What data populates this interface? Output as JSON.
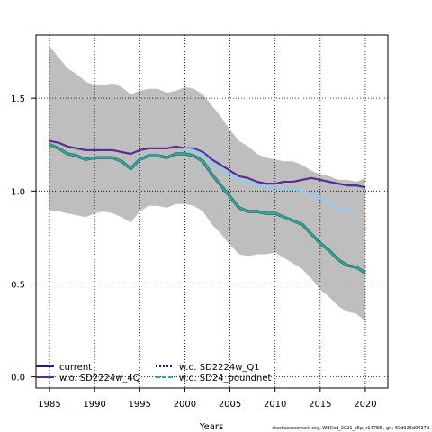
{
  "chart_data": {
    "type": "line",
    "title": "",
    "xlabel": "Years",
    "ylabel": "",
    "xlim": [
      1983.5,
      2022.5
    ],
    "ylim": [
      -0.06,
      1.84
    ],
    "x_ticks": [
      1985,
      1990,
      1995,
      2000,
      2005,
      2010,
      2015,
      2020
    ],
    "y_ticks": [
      0.0,
      0.5,
      1.0,
      1.5
    ],
    "y_tick_labels": [
      "0.0",
      "0.5",
      "1.0",
      "1.5"
    ],
    "grid": true,
    "band": {
      "color": "#bebebe",
      "x": [
        1985,
        1986,
        1987,
        1988,
        1989,
        1990,
        1991,
        1992,
        1993,
        1994,
        1995,
        1996,
        1997,
        1998,
        1999,
        2000,
        2001,
        2002,
        2003,
        2004,
        2005,
        2006,
        2007,
        2008,
        2009,
        2010,
        2011,
        2012,
        2013,
        2014,
        2015,
        2016,
        2017,
        2018,
        2019,
        2020
      ],
      "upper": [
        1.78,
        1.72,
        1.66,
        1.63,
        1.59,
        1.57,
        1.57,
        1.58,
        1.56,
        1.52,
        1.54,
        1.55,
        1.55,
        1.53,
        1.54,
        1.56,
        1.55,
        1.52,
        1.46,
        1.4,
        1.33,
        1.27,
        1.24,
        1.2,
        1.18,
        1.17,
        1.16,
        1.16,
        1.14,
        1.11,
        1.09,
        1.08,
        1.06,
        1.06,
        1.05,
        1.07
      ],
      "lower": [
        0.89,
        0.89,
        0.88,
        0.87,
        0.86,
        0.88,
        0.89,
        0.88,
        0.86,
        0.83,
        0.89,
        0.92,
        0.92,
        0.91,
        0.93,
        0.93,
        0.92,
        0.89,
        0.82,
        0.77,
        0.71,
        0.66,
        0.65,
        0.66,
        0.66,
        0.67,
        0.64,
        0.61,
        0.58,
        0.53,
        0.47,
        0.43,
        0.38,
        0.35,
        0.34,
        0.3
      ]
    },
    "series": [
      {
        "name": "current",
        "color": "#2d1b7a",
        "style": "solid",
        "x": [
          1985,
          1986,
          1987,
          1988,
          1989,
          1990,
          1991,
          1992,
          1993,
          1994,
          1995,
          1996,
          1997,
          1998,
          1999,
          2000,
          2001,
          2002,
          2003,
          2004,
          2005,
          2006,
          2007,
          2008,
          2009,
          2010,
          2011,
          2012,
          2013,
          2014,
          2015,
          2016,
          2017,
          2018,
          2019,
          2020
        ],
        "values": [
          1.27,
          1.26,
          1.24,
          1.23,
          1.22,
          1.22,
          1.22,
          1.22,
          1.21,
          1.2,
          1.22,
          1.23,
          1.23,
          1.23,
          1.24,
          1.23,
          1.23,
          1.21,
          1.17,
          1.14,
          1.11,
          1.08,
          1.07,
          1.05,
          1.04,
          1.04,
          1.05,
          1.05,
          1.06,
          1.07,
          1.06,
          1.05,
          1.04,
          1.03,
          1.03,
          1.02
        ]
      },
      {
        "name": "w.o. SD2224w_4Q",
        "color": "#5b2a9e",
        "style": "solid",
        "x": [
          1985,
          1986,
          1987,
          1988,
          1989,
          1990,
          1991,
          1992,
          1993,
          1994,
          1995,
          1996,
          1997,
          1998,
          1999,
          2000,
          2001,
          2002,
          2003,
          2004,
          2005,
          2006,
          2007,
          2008,
          2009,
          2010,
          2011,
          2012,
          2013,
          2014,
          2015,
          2016,
          2017,
          2018,
          2019,
          2020
        ],
        "values": [
          1.27,
          1.26,
          1.24,
          1.23,
          1.22,
          1.22,
          1.22,
          1.22,
          1.21,
          1.2,
          1.22,
          1.23,
          1.23,
          1.23,
          1.24,
          1.23,
          1.23,
          1.21,
          1.17,
          1.14,
          1.11,
          1.08,
          1.07,
          1.05,
          1.04,
          1.04,
          1.05,
          1.05,
          1.06,
          1.07,
          1.06,
          1.05,
          1.04,
          1.03,
          1.03,
          1.02
        ]
      },
      {
        "name": "w.o. SD2224w_Q1",
        "color": "#87cefa",
        "style": "solid",
        "x": [
          1985,
          1986,
          1987,
          1988,
          1989,
          1990,
          1991,
          1992,
          1993,
          1994,
          1995,
          1996,
          1997,
          1998,
          1999,
          2000,
          2001,
          2002,
          2003,
          2004,
          2005,
          2006,
          2007,
          2008,
          2009,
          2010,
          2011,
          2012,
          2013,
          2014,
          2015,
          2016,
          2017,
          2018,
          2019
        ],
        "values": [
          1.25,
          1.23,
          1.2,
          1.19,
          1.17,
          1.18,
          1.18,
          1.18,
          1.16,
          1.13,
          1.17,
          1.19,
          1.19,
          1.18,
          1.2,
          1.23,
          1.22,
          1.2,
          1.15,
          1.12,
          1.09,
          1.06,
          1.05,
          1.03,
          1.02,
          1.02,
          1.01,
          1.01,
          1.0,
          0.99,
          0.96,
          0.94,
          0.91,
          0.89,
          0.88
        ]
      },
      {
        "name": "w.o. SD24_poundnet",
        "color": "#2bae8f",
        "style": "solid",
        "x": [
          1985,
          1986,
          1987,
          1988,
          1989,
          1990,
          1991,
          1992,
          1993,
          1994,
          1995,
          1996,
          1997,
          1998,
          1999,
          2000,
          2001,
          2002,
          2003,
          2004,
          2005,
          2006,
          2007,
          2008,
          2009,
          2010,
          2011,
          2012,
          2013,
          2014,
          2015,
          2016,
          2017,
          2018,
          2019,
          2020
        ],
        "values": [
          1.25,
          1.23,
          1.2,
          1.19,
          1.17,
          1.18,
          1.18,
          1.18,
          1.16,
          1.12,
          1.17,
          1.19,
          1.19,
          1.18,
          1.2,
          1.2,
          1.19,
          1.16,
          1.09,
          1.03,
          0.97,
          0.91,
          0.89,
          0.89,
          0.88,
          0.88,
          0.86,
          0.84,
          0.82,
          0.77,
          0.72,
          0.68,
          0.63,
          0.6,
          0.59,
          0.56
        ]
      }
    ],
    "legend": {
      "placement": "bottom-left",
      "items": [
        {
          "label": "current",
          "color": "#2d1b7a",
          "style": "solid"
        },
        {
          "label": "w.o. SD2224w_4Q",
          "color": "#5b2a9e",
          "style": "solid"
        },
        {
          "label": "w.o. SD2224w_Q1",
          "color": "#1a237e",
          "style": "dotted"
        },
        {
          "label": "w.o. SD24_poundnet",
          "color": "#2bae8f",
          "style": "dashed"
        }
      ]
    }
  },
  "footer": "stockassessment.org, WBCod_2021_c5p, r14788 , git: 69d926d0437d"
}
